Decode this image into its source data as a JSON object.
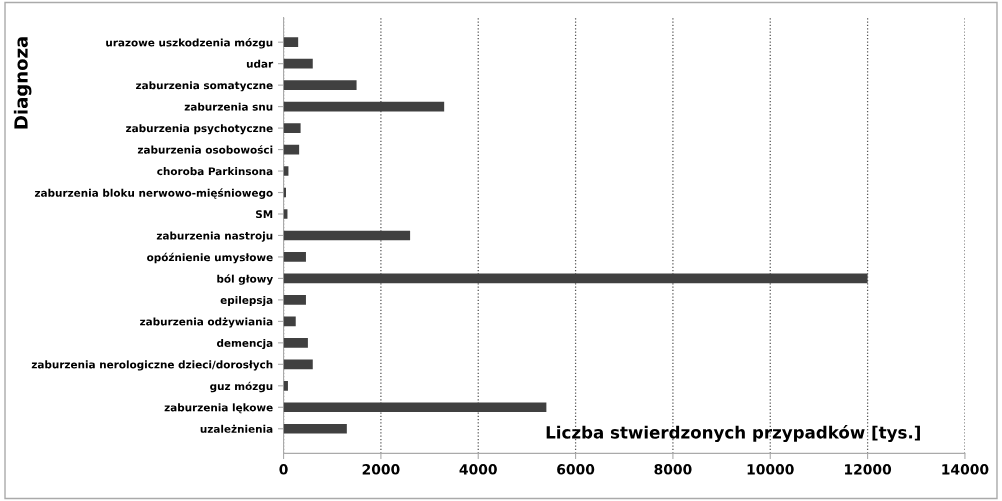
{
  "chart_data": {
    "type": "bar",
    "orientation": "horizontal",
    "xlabel": "Liczba stwierdzonych przypadków [tys.]",
    "ylabel": "Diagnoza",
    "categories": [
      "urazowe uszkodzenia mózgu",
      "udar",
      "zaburzenia somatyczne",
      "zaburzenia snu",
      "zaburzenia psychotyczne",
      "zaburzenia osobowości",
      "choroba Parkinsona",
      "zaburzenia bloku nerwowo-mięśniowego",
      "SM",
      "zaburzenia nastroju",
      "opóźnienie umysłowe",
      "ból głowy",
      "epilepsja",
      "zaburzenia odżywiania",
      "demencja",
      "zaburzenia nerologiczne dzieci/dorosłych",
      "guz mózgu",
      "zaburzenia lękowe",
      "uzależnienia"
    ],
    "values": [
      300,
      600,
      1500,
      3300,
      350,
      320,
      100,
      50,
      80,
      2600,
      460,
      12000,
      460,
      250,
      500,
      600,
      90,
      5400,
      1300
    ],
    "color": "#404040",
    "xlim": [
      0,
      14000
    ],
    "xticks": [
      0,
      2000,
      4000,
      6000,
      8000,
      10000,
      12000,
      14000
    ],
    "grid": "x"
  }
}
